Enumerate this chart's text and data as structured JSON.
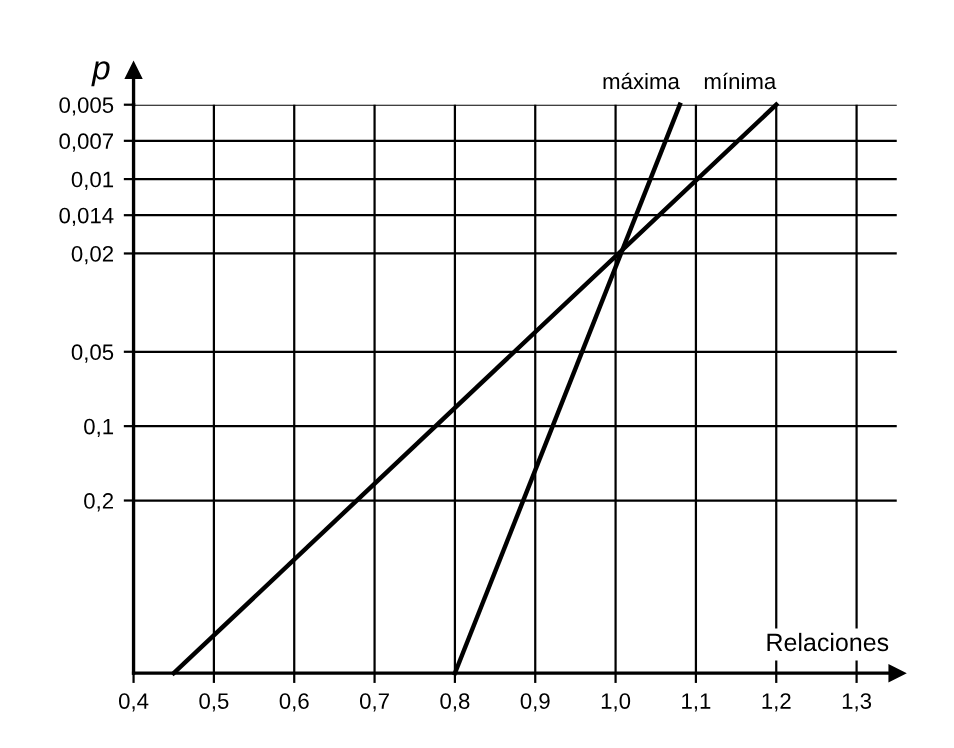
{
  "chart_data": {
    "type": "line",
    "xlabel": "Relaciones",
    "ylabel": "p",
    "log": "y",
    "grid": true,
    "legend": false,
    "marker": "none",
    "line_style": "solid",
    "xlim": [
      0.4,
      1.35
    ],
    "ylim": [
      1,
      0.005
    ],
    "xticks": [
      {
        "value": 0.4,
        "label": "0,4"
      },
      {
        "value": 0.5,
        "label": "0,5"
      },
      {
        "value": 0.6,
        "label": "0,6"
      },
      {
        "value": 0.7,
        "label": "0,7"
      },
      {
        "value": 0.8,
        "label": "0,8"
      },
      {
        "value": 0.9,
        "label": "0,9"
      },
      {
        "value": 1.0,
        "label": "1,0"
      },
      {
        "value": 1.1,
        "label": "1,1"
      },
      {
        "value": 1.2,
        "label": "1,2"
      },
      {
        "value": 1.3,
        "label": "1,3"
      }
    ],
    "yticks": [
      {
        "value": 0.005,
        "label": "0,005"
      },
      {
        "value": 0.007,
        "label": "0,007"
      },
      {
        "value": 0.01,
        "label": "0,01"
      },
      {
        "value": 0.014,
        "label": "0,014"
      },
      {
        "value": 0.02,
        "label": "0,02"
      },
      {
        "value": 0.05,
        "label": "0,05"
      },
      {
        "value": 0.1,
        "label": "0,1"
      },
      {
        "value": 0.2,
        "label": "0,2"
      }
    ],
    "series": [
      {
        "name": "máxima",
        "color": "#000000",
        "x": [
          0.8,
          1.08
        ],
        "values": [
          1,
          0.005
        ]
      },
      {
        "name": "mínima",
        "color": "#000000",
        "x": [
          0.45,
          1.2
        ],
        "values": [
          1,
          0.005
        ]
      }
    ]
  }
}
